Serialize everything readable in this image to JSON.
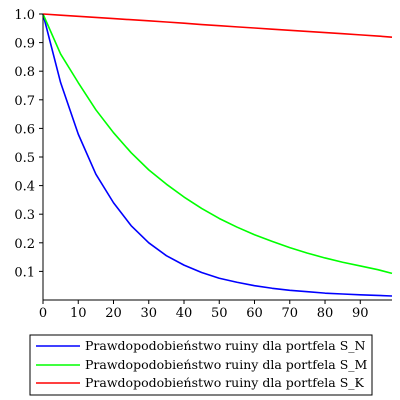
{
  "chart_data": {
    "type": "line",
    "title": "",
    "xlabel": "",
    "ylabel": "",
    "xlim": [
      0,
      99
    ],
    "ylim": [
      0,
      1.0
    ],
    "xticks": [
      "0",
      "10",
      "20",
      "30",
      "40",
      "50",
      "60",
      "70",
      "80",
      "90"
    ],
    "yticks": [
      "0.1",
      "0.2",
      "0.3",
      "0.4",
      "0.5",
      "0.6",
      "0.7",
      "0.8",
      "0.9",
      "1.0"
    ],
    "grid": false,
    "legend_position": "bottom",
    "x": [
      0,
      5,
      10,
      15,
      20,
      25,
      30,
      35,
      40,
      45,
      50,
      55,
      60,
      65,
      70,
      75,
      80,
      85,
      90,
      95,
      99
    ],
    "series": [
      {
        "name": "Prawdopodobieństwo ruiny dla portfela S_N",
        "color": "#0000ff",
        "values": [
          1.0,
          0.76,
          0.58,
          0.44,
          0.34,
          0.26,
          0.2,
          0.155,
          0.122,
          0.096,
          0.076,
          0.062,
          0.05,
          0.041,
          0.034,
          0.029,
          0.024,
          0.021,
          0.018,
          0.016,
          0.014
        ]
      },
      {
        "name": "Prawdopodobieństwo ruiny dla portfela S_M",
        "color": "#00ff00",
        "values": [
          1.0,
          0.86,
          0.76,
          0.665,
          0.585,
          0.515,
          0.455,
          0.405,
          0.36,
          0.32,
          0.285,
          0.255,
          0.228,
          0.205,
          0.183,
          0.164,
          0.147,
          0.132,
          0.119,
          0.106,
          0.093
        ]
      },
      {
        "name": "Prawdopodobieństwo ruiny dla portfela S_K",
        "color": "#ff0000",
        "values": [
          1.0,
          0.996,
          0.992,
          0.988,
          0.984,
          0.98,
          0.976,
          0.972,
          0.968,
          0.963,
          0.959,
          0.955,
          0.951,
          0.947,
          0.943,
          0.939,
          0.935,
          0.931,
          0.927,
          0.923,
          0.919
        ]
      }
    ]
  }
}
